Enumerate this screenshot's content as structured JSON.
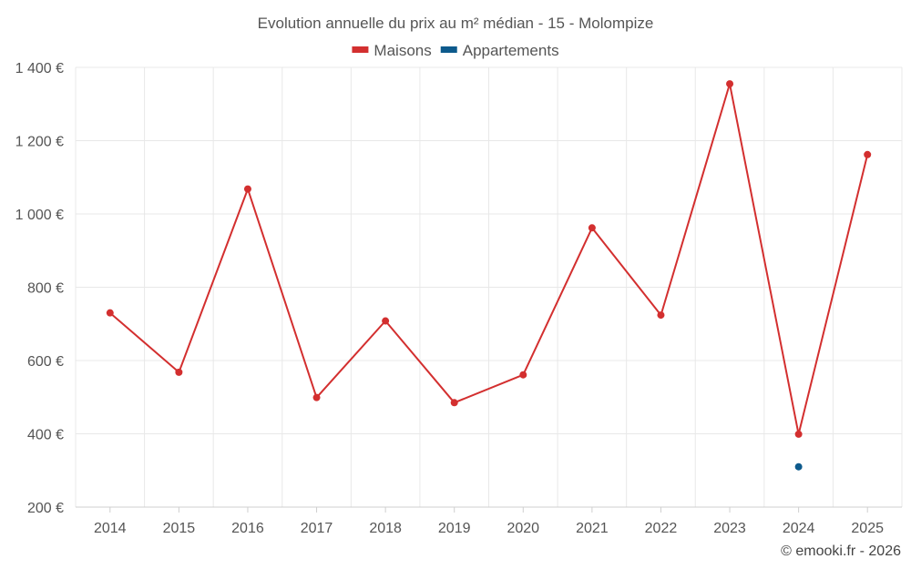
{
  "chart_data": {
    "type": "line",
    "title": "Evolution annuelle du prix au m² médian - 15 - Molompize",
    "categories": [
      "2014",
      "2015",
      "2016",
      "2017",
      "2018",
      "2019",
      "2020",
      "2021",
      "2022",
      "2023",
      "2024",
      "2025"
    ],
    "series": [
      {
        "name": "Maisons",
        "color": "#d32f2f",
        "values": [
          730,
          568,
          1068,
          499,
          708,
          485,
          561,
          962,
          724,
          1355,
          399,
          1162
        ]
      },
      {
        "name": "Appartements",
        "color": "#0d5a8c",
        "values": [
          null,
          null,
          null,
          null,
          null,
          null,
          null,
          null,
          null,
          null,
          310,
          null
        ]
      }
    ],
    "ylim": [
      200,
      1400
    ],
    "yticks": [
      200,
      400,
      600,
      800,
      1000,
      1200,
      1400
    ],
    "ytick_labels": [
      "200 €",
      "400 €",
      "600 €",
      "800 €",
      "1 000 €",
      "1 200 €",
      "1 400 €"
    ],
    "xlabel": "",
    "ylabel": "",
    "legend_position": "top-center",
    "grid": true
  },
  "credit": "© emooki.fr - 2026"
}
